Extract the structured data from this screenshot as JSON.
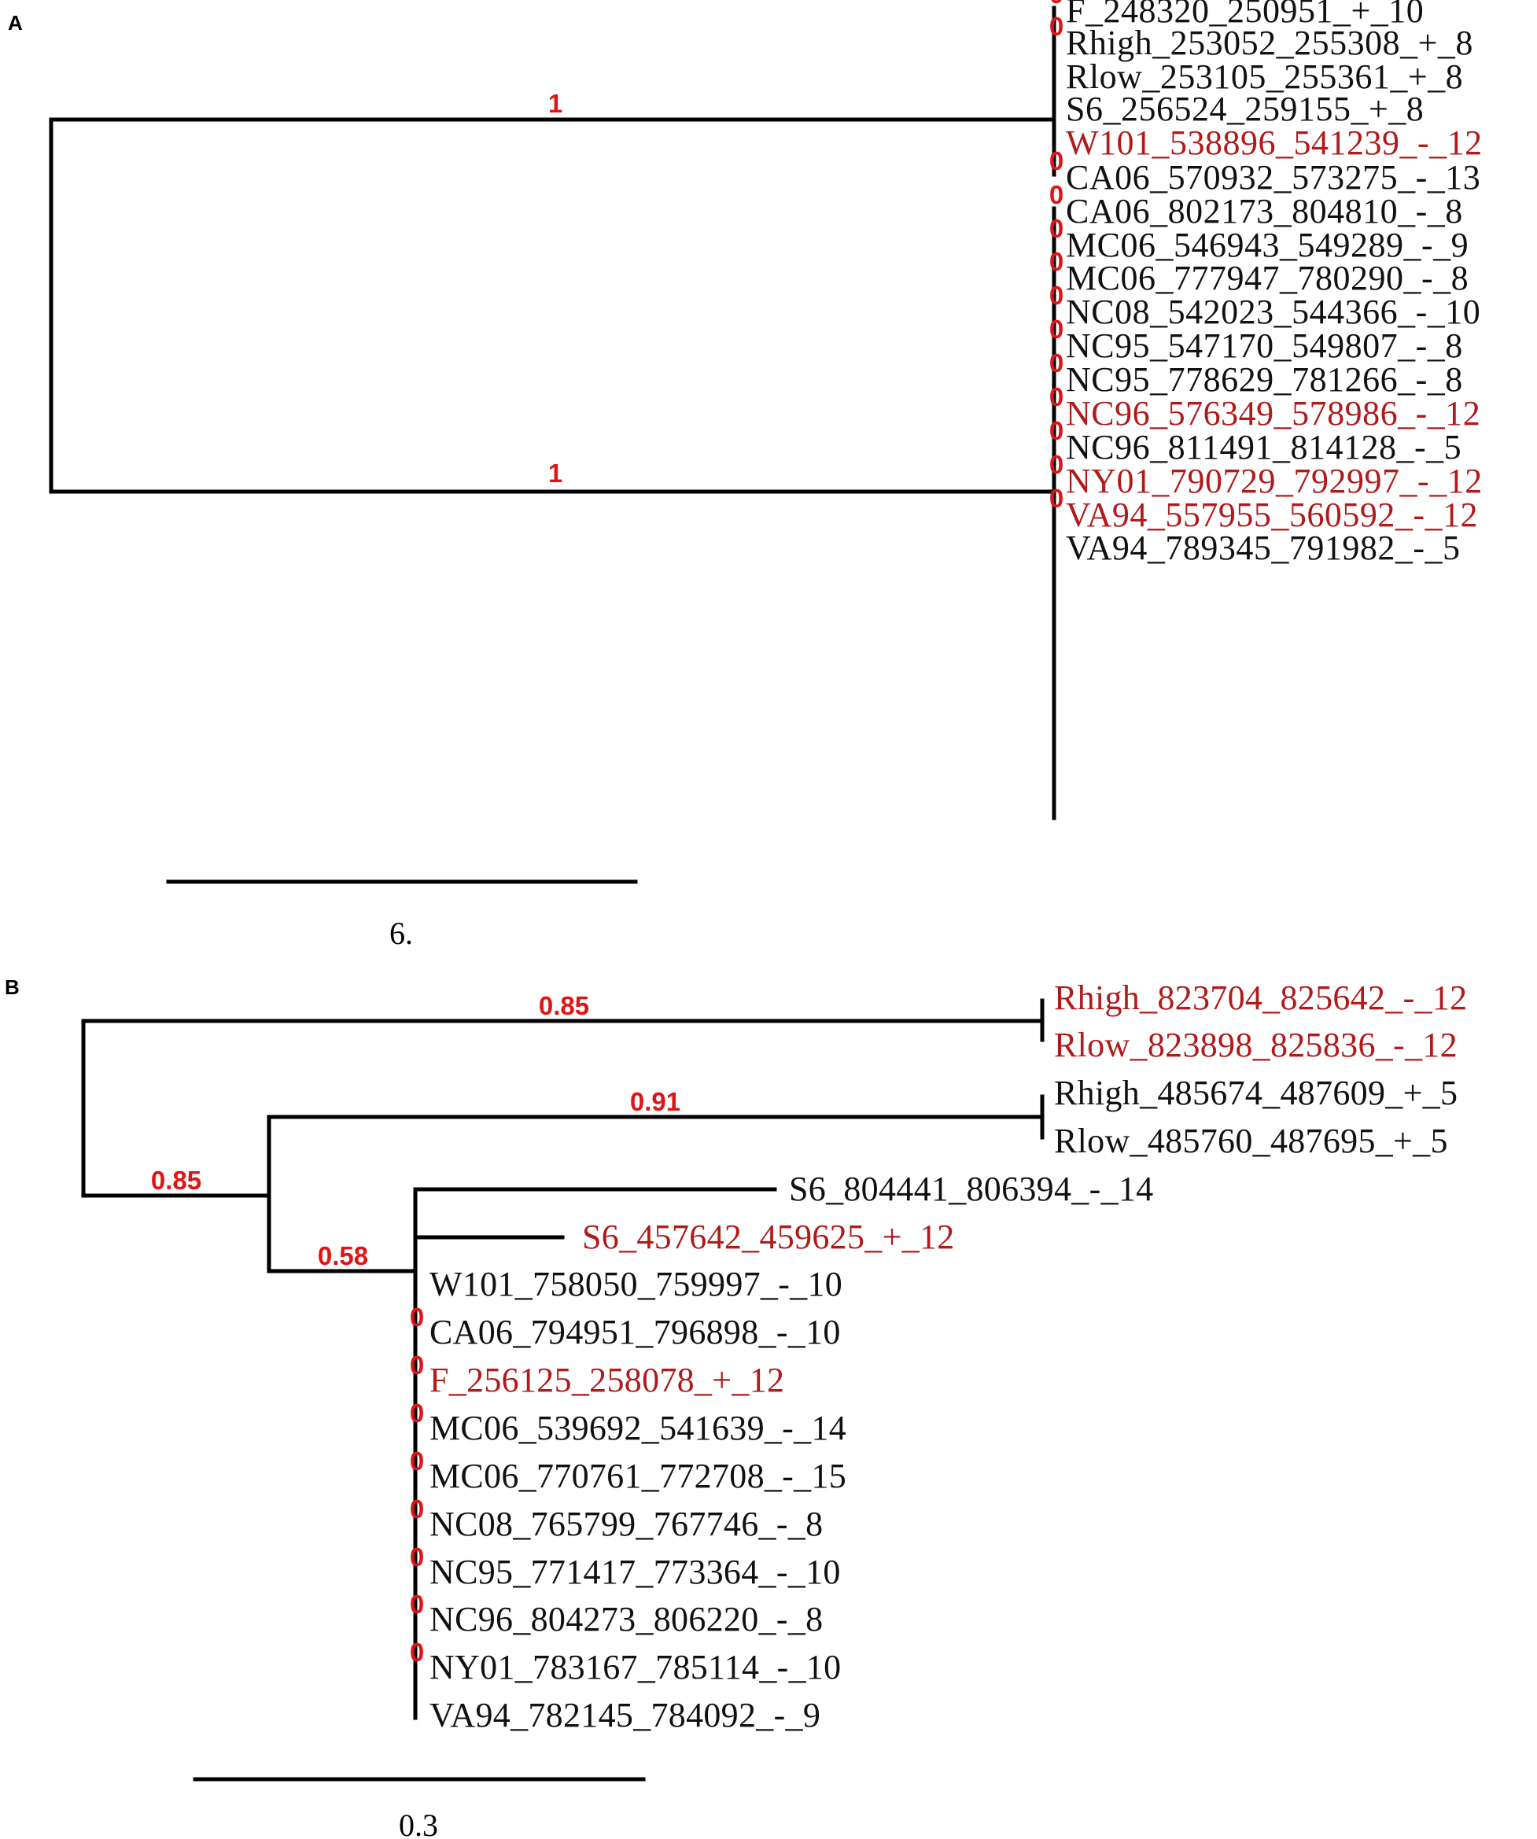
{
  "colors": {
    "black": "#111111",
    "red_label": "#b01a1a",
    "support": "#e01414"
  },
  "panels": [
    {
      "id": "A",
      "letter": "A",
      "support_labels": [
        "1",
        "1"
      ],
      "scale_bar_label": "6.",
      "tips": [
        {
          "label": "F_248320_250951_+_10",
          "color": "black",
          "zero": "0"
        },
        {
          "label": "Rhigh_253052_255308_+_8",
          "color": "black",
          "zero": "0"
        },
        {
          "label": "Rlow_253105_255361_+_8",
          "color": "black",
          "zero": ""
        },
        {
          "label": "S6_256524_259155_+_8",
          "color": "black",
          "zero": ""
        },
        {
          "label": "W101_538896_541239_-_12",
          "color": "red",
          "zero": ""
        },
        {
          "label": "CA06_570932_573275_-_13",
          "color": "black",
          "zero": "0"
        },
        {
          "label": "CA06_802173_804810_-_8",
          "color": "black",
          "zero": "0"
        },
        {
          "label": "MC06_546943_549289_-_9",
          "color": "black",
          "zero": "0"
        },
        {
          "label": "MC06_777947_780290_-_8",
          "color": "black",
          "zero": "0"
        },
        {
          "label": "NC08_542023_544366_-_10",
          "color": "black",
          "zero": "0"
        },
        {
          "label": "NC95_547170_549807_-_8",
          "color": "black",
          "zero": "0"
        },
        {
          "label": "NC95_778629_781266_-_8",
          "color": "black",
          "zero": "0"
        },
        {
          "label": "NC96_576349_578986_-_12",
          "color": "red",
          "zero": "0"
        },
        {
          "label": "NC96_811491_814128_-_5",
          "color": "black",
          "zero": "0"
        },
        {
          "label": "NY01_790729_792997_-_12",
          "color": "red",
          "zero": "0"
        },
        {
          "label": "VA94_557955_560592_-_12",
          "color": "red",
          "zero": "0"
        },
        {
          "label": "VA94_789345_791982_-_5",
          "color": "black",
          "zero": ""
        }
      ]
    },
    {
      "id": "B",
      "letter": "B",
      "support_labels": [
        "0.85",
        "0.91",
        "0.85",
        "0.58"
      ],
      "scale_bar_label": "0.3",
      "tips": [
        {
          "label": "Rhigh_823704_825642_-_12",
          "color": "red",
          "zero": ""
        },
        {
          "label": "Rlow_823898_825836_-_12",
          "color": "red",
          "zero": ""
        },
        {
          "label": "Rhigh_485674_487609_+_5",
          "color": "black",
          "zero": ""
        },
        {
          "label": "Rlow_485760_487695_+_5",
          "color": "black",
          "zero": ""
        },
        {
          "label": "S6_804441_806394_-_14",
          "color": "black",
          "zero": ""
        },
        {
          "label": "S6_457642_459625_+_12",
          "color": "red",
          "zero": ""
        },
        {
          "label": "W101_758050_759997_-_10",
          "color": "black",
          "zero": ""
        },
        {
          "label": "CA06_794951_796898_-_10",
          "color": "black",
          "zero": "0"
        },
        {
          "label": "F_256125_258078_+_12",
          "color": "red",
          "zero": "0"
        },
        {
          "label": "MC06_539692_541639_-_14",
          "color": "black",
          "zero": "0"
        },
        {
          "label": "MC06_770761_772708_-_15",
          "color": "black",
          "zero": "0"
        },
        {
          "label": "NC08_765799_767746_-_8",
          "color": "black",
          "zero": "0"
        },
        {
          "label": "NC95_771417_773364_-_10",
          "color": "black",
          "zero": "0"
        },
        {
          "label": "NC96_804273_806220_-_8",
          "color": "black",
          "zero": "0"
        },
        {
          "label": "NY01_783167_785114_-_10",
          "color": "black",
          "zero": "0"
        },
        {
          "label": "VA94_782145_784092_-_9",
          "color": "black",
          "zero": ""
        }
      ]
    }
  ]
}
